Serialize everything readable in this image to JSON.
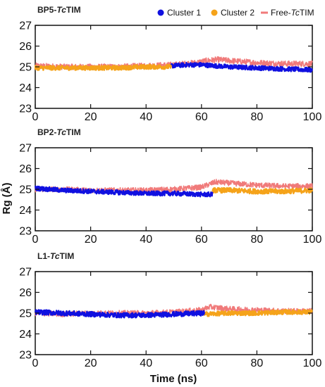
{
  "colors": {
    "cluster1": "#1010e0",
    "cluster2": "#f5a31a",
    "free": "#f07a7a",
    "axis": "#111111"
  },
  "legend": {
    "placement": "top-right",
    "items": [
      {
        "key": "cluster1",
        "label": "Cluster 1",
        "symbol": "dot"
      },
      {
        "key": "cluster2",
        "label": "Cluster 2",
        "symbol": "dot"
      },
      {
        "key": "free",
        "label_prefix": "Free-",
        "label_italic": "Tc",
        "label_suffix": "TIM",
        "symbol": "line"
      }
    ]
  },
  "chart_data": [
    {
      "type": "line",
      "title_prefix": "BP5-",
      "title_italic": "Tc",
      "title_suffix": "TIM",
      "xlabel": "",
      "ylabel": "",
      "xlim": [
        0,
        100
      ],
      "ylim": [
        23,
        27
      ],
      "xticks": [
        0,
        20,
        40,
        60,
        80,
        100
      ],
      "yticks": [
        23,
        24,
        25,
        26,
        27
      ],
      "series": [
        {
          "key": "free",
          "x": [
            0,
            10,
            20,
            30,
            40,
            50,
            58,
            62,
            66,
            70,
            80,
            90,
            100
          ],
          "values": [
            25.05,
            25.0,
            25.0,
            25.0,
            25.05,
            25.1,
            25.2,
            25.3,
            25.35,
            25.3,
            25.2,
            25.15,
            25.15
          ],
          "noise": 0.14
        },
        {
          "key": "cluster1",
          "x": [
            49,
            55,
            60,
            65,
            70,
            80,
            90,
            100
          ],
          "values": [
            25.05,
            25.1,
            25.1,
            25.05,
            25.0,
            24.95,
            24.9,
            24.85
          ],
          "noise": 0.11
        },
        {
          "key": "cluster2",
          "x": [
            0,
            10,
            20,
            30,
            40,
            49
          ],
          "values": [
            24.95,
            24.95,
            24.95,
            24.95,
            25.0,
            25.0
          ],
          "noise": 0.11
        }
      ]
    },
    {
      "type": "line",
      "title_prefix": "BP2-",
      "title_italic": "Tc",
      "title_suffix": "TIM",
      "xlabel": "",
      "ylabel": "Rg (Å)",
      "xlim": [
        0,
        100
      ],
      "ylim": [
        23,
        27
      ],
      "xticks": [
        0,
        20,
        40,
        60,
        80,
        100
      ],
      "yticks": [
        23,
        24,
        25,
        26,
        27
      ],
      "series": [
        {
          "key": "free",
          "x": [
            0,
            10,
            20,
            30,
            40,
            50,
            60,
            65,
            70,
            80,
            90,
            100
          ],
          "values": [
            25.0,
            25.0,
            24.95,
            24.95,
            24.95,
            25.0,
            25.1,
            25.35,
            25.3,
            25.2,
            25.15,
            25.15
          ],
          "noise": 0.13
        },
        {
          "key": "cluster2",
          "x": [
            64,
            70,
            80,
            90,
            100
          ],
          "values": [
            24.95,
            24.95,
            24.9,
            24.9,
            24.95
          ],
          "noise": 0.12
        },
        {
          "key": "cluster1",
          "x": [
            0,
            10,
            20,
            30,
            40,
            50,
            60,
            64
          ],
          "values": [
            25.05,
            24.95,
            24.9,
            24.85,
            24.8,
            24.8,
            24.75,
            24.75
          ],
          "noise": 0.11
        }
      ]
    },
    {
      "type": "line",
      "title_prefix": "L1-",
      "title_italic": "Tc",
      "title_suffix": "TIM",
      "xlabel": "Time (ns)",
      "ylabel": "",
      "xlim": [
        0,
        100
      ],
      "ylim": [
        23,
        27
      ],
      "xticks": [
        0,
        20,
        40,
        60,
        80,
        100
      ],
      "yticks": [
        23,
        24,
        25,
        26,
        27
      ],
      "series": [
        {
          "key": "free",
          "x": [
            0,
            10,
            20,
            30,
            40,
            50,
            60,
            63,
            70,
            80,
            90,
            100
          ],
          "values": [
            25.0,
            24.95,
            25.0,
            25.0,
            25.0,
            25.05,
            25.15,
            25.3,
            25.2,
            25.15,
            25.1,
            25.1
          ],
          "noise": 0.13
        },
        {
          "key": "cluster2",
          "x": [
            61,
            70,
            80,
            90,
            100
          ],
          "values": [
            24.95,
            25.0,
            25.0,
            25.05,
            25.05
          ],
          "noise": 0.11
        },
        {
          "key": "cluster1",
          "x": [
            0,
            10,
            20,
            30,
            40,
            50,
            61
          ],
          "values": [
            25.05,
            25.0,
            24.95,
            24.9,
            24.9,
            24.95,
            25.0
          ],
          "noise": 0.12
        }
      ]
    }
  ]
}
